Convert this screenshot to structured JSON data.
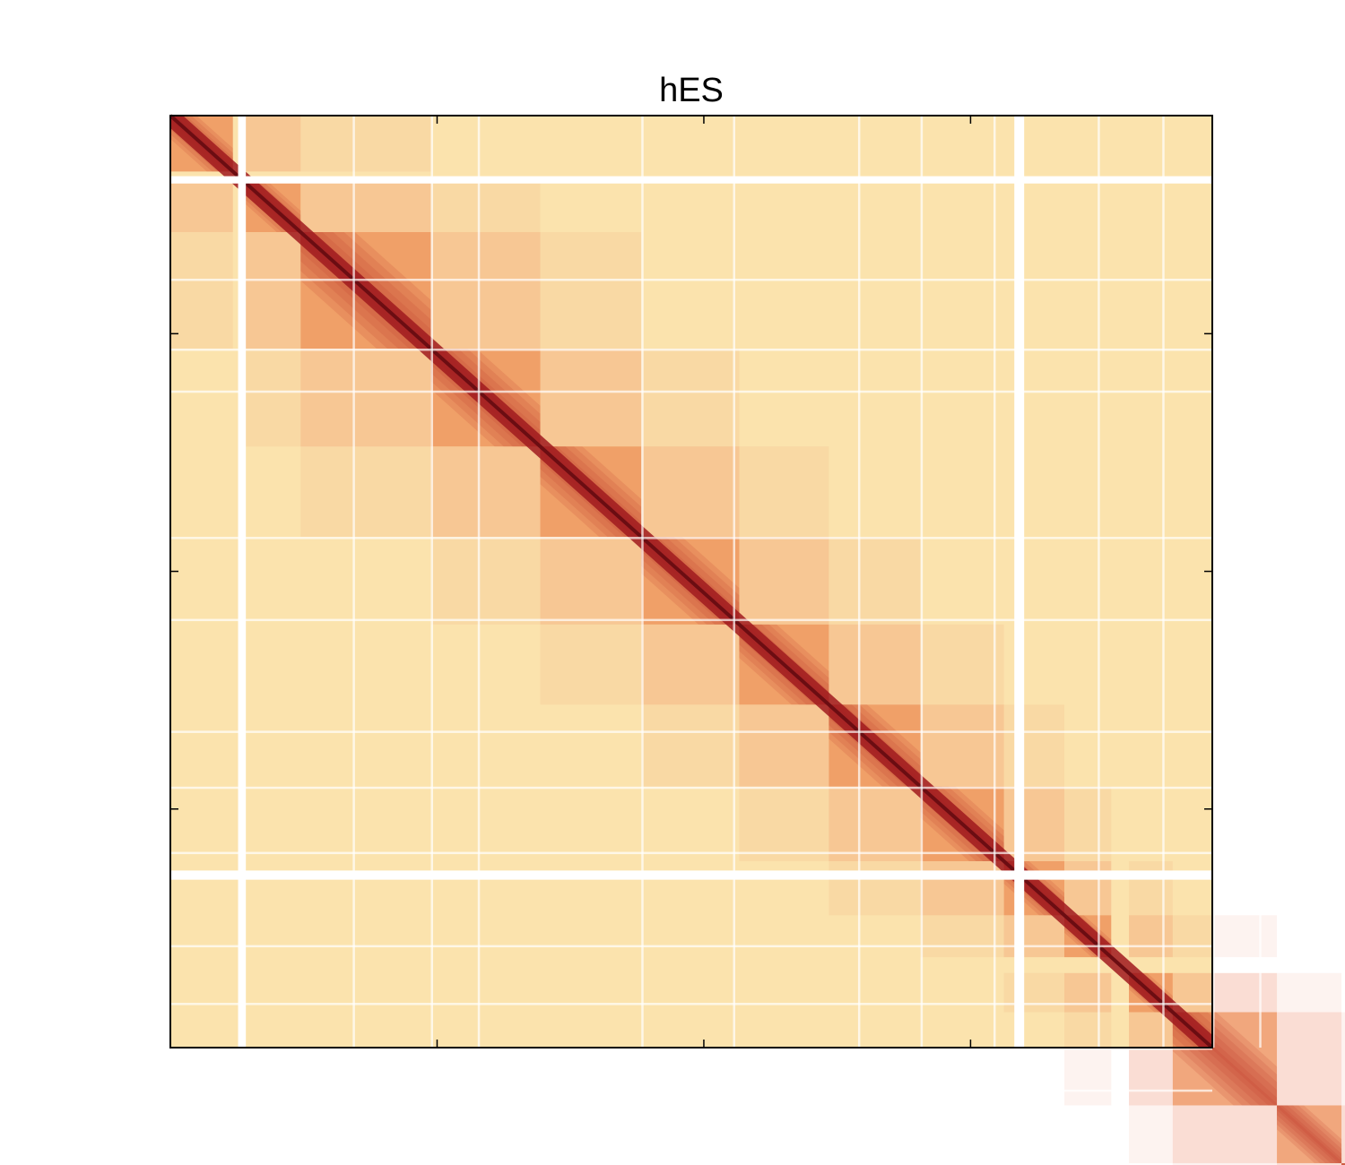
{
  "chart_data": {
    "type": "heatmap",
    "title": "hES",
    "xlabel": "",
    "ylabel": "",
    "colormap": [
      "#ffffff",
      "#fbe3ad",
      "#f6b26b",
      "#e8663d",
      "#b51d1d",
      "#5a0a12"
    ],
    "colors": {
      "background_light": "#fbe3ad",
      "diagonal_dark": "#6b0d12",
      "axis": "#000000"
    },
    "matrix_bins": 1000,
    "domains": [
      [
        0,
        60
      ],
      [
        70,
        125
      ],
      [
        125,
        250
      ],
      [
        250,
        355
      ],
      [
        355,
        452
      ],
      [
        452,
        546
      ],
      [
        546,
        632
      ],
      [
        632,
        720
      ],
      [
        720,
        800
      ],
      [
        800,
        858
      ],
      [
        858,
        903
      ],
      [
        920,
        962
      ],
      [
        962,
        1062
      ],
      [
        1062,
        1124
      ],
      [
        1124,
        1165
      ]
    ],
    "masked_bins": [
      65,
      66,
      67,
      68,
      810,
      811,
      812,
      813,
      814,
      815
    ],
    "faint_bins": [
      175,
      250,
      295,
      452,
      540,
      660,
      720,
      790,
      890,
      952,
      1000,
      1045
    ],
    "x_ticks": [
      0.256,
      0.512,
      0.768
    ],
    "y_ticks": [
      0.234,
      0.489,
      0.744
    ],
    "grid": false,
    "colorbar": false
  }
}
